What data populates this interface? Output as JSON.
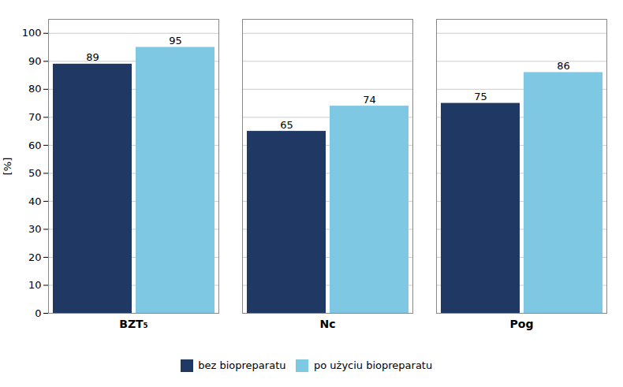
{
  "chart_data": {
    "type": "bar",
    "categories": [
      "BZT₅",
      "Nc",
      "Pog"
    ],
    "series": [
      {
        "name": "bez biopreparatu",
        "color": "#1F3864",
        "values": [
          89,
          65,
          75
        ]
      },
      {
        "name": "po użyciu biopreparatu",
        "color": "#7EC8E3",
        "values": [
          95,
          74,
          86
        ]
      }
    ],
    "ylabel": "[%]",
    "ylim": [
      0,
      105
    ],
    "yticks": [
      0,
      10,
      20,
      30,
      40,
      50,
      60,
      70,
      80,
      90,
      100
    ],
    "grid": true,
    "data_labels": true,
    "legend": "bottom"
  }
}
